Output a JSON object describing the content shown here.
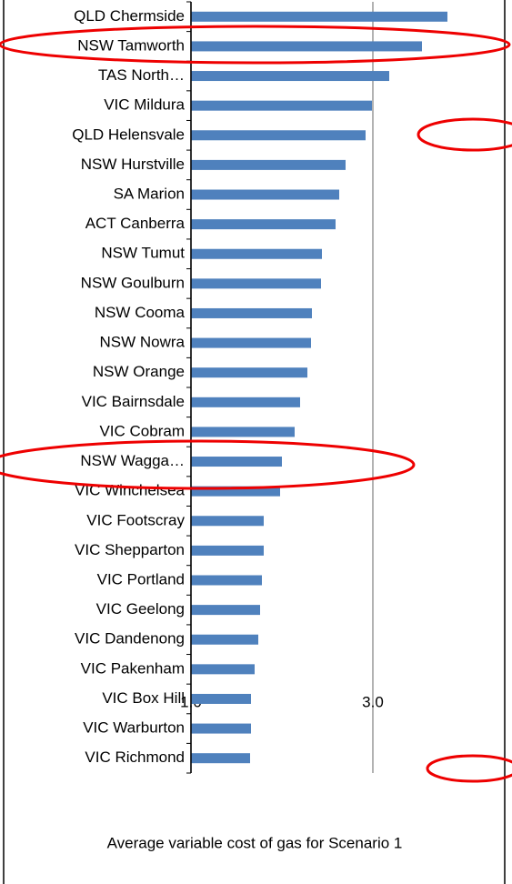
{
  "chart_data": {
    "type": "bar",
    "orientation": "horizontal",
    "x_label": "Average  variable cost of gas for Scenario 1",
    "categories": [
      "QLD Chermside",
      "NSW Tamworth",
      "TAS North…",
      "VIC Mildura",
      "QLD Helensvale",
      "NSW Hurstville",
      "SA Marion",
      "ACT Canberra",
      "NSW Tumut",
      "NSW Goulburn",
      "NSW Cooma",
      "NSW Nowra",
      "NSW Orange",
      "VIC Bairnsdale",
      "VIC Cobram",
      "NSW Wagga…",
      "VIC Winchelsea",
      "VIC Footscray",
      "VIC Shepparton",
      "VIC Portland",
      "VIC Geelong",
      "VIC Dandenong",
      "VIC Pakenham",
      "VIC Box Hill",
      "VIC Warburton",
      "VIC Richmond"
    ],
    "values": [
      3.82,
      3.54,
      3.18,
      2.99,
      2.92,
      2.7,
      2.63,
      2.59,
      2.44,
      2.43,
      2.33,
      2.32,
      2.28,
      2.2,
      2.14,
      2.0,
      1.98,
      1.8,
      1.8,
      1.78,
      1.76,
      1.74,
      1.7,
      1.66,
      1.66,
      1.65
    ],
    "color": "#4f81bd",
    "xlim": [
      1,
      4.45
    ],
    "xticks": [
      {
        "value": 1,
        "label": "1.0"
      },
      {
        "value": 3,
        "label": "3.0"
      }
    ],
    "grid": true
  }
}
